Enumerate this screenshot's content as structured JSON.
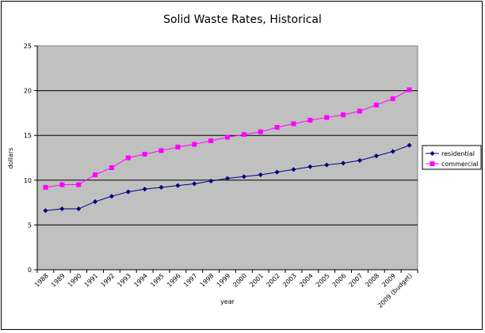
{
  "chart_data": {
    "type": "line",
    "title": "Solid Waste Rates, Historical",
    "xlabel": "year",
    "ylabel": "dollars",
    "ylim": [
      0,
      25
    ],
    "yticks": [
      0,
      5,
      10,
      15,
      20,
      25
    ],
    "grid": true,
    "legend_position": "right",
    "plot_background": "#c0c0c0",
    "categories": [
      "1988",
      "1989",
      "1990",
      "1991",
      "1992",
      "1993",
      "1994",
      "1995",
      "1996",
      "1997",
      "1998",
      "1999",
      "2000",
      "2001",
      "2002",
      "2003",
      "2004",
      "2005",
      "2006",
      "2007",
      "2008",
      "2009",
      "2009 (budget)"
    ],
    "series": [
      {
        "name": "residential",
        "color": "#000080",
        "marker": "diamond",
        "values": [
          6.6,
          6.8,
          6.8,
          7.6,
          8.2,
          8.7,
          9.0,
          9.2,
          9.4,
          9.6,
          9.9,
          10.2,
          10.4,
          10.6,
          10.9,
          11.2,
          11.5,
          11.7,
          11.9,
          12.2,
          12.7,
          13.2,
          13.9
        ]
      },
      {
        "name": "commercial",
        "color": "#ff00ff",
        "marker": "square",
        "values": [
          9.2,
          9.5,
          9.5,
          10.6,
          11.4,
          12.5,
          12.9,
          13.3,
          13.7,
          14.0,
          14.4,
          14.8,
          15.1,
          15.4,
          15.9,
          16.3,
          16.7,
          17.0,
          17.3,
          17.7,
          18.4,
          19.1,
          20.1
        ]
      }
    ]
  }
}
